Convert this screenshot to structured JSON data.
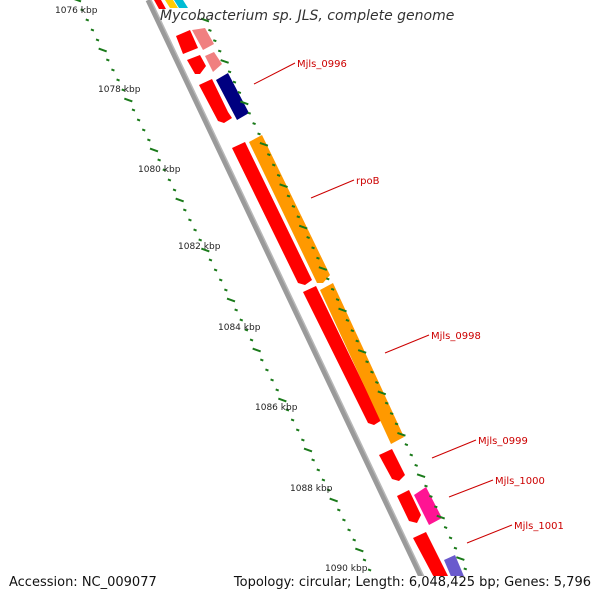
{
  "title": "Mycobacterium sp. JLS, complete genome",
  "footer": {
    "accession": "Accession: NC_009077",
    "summary": "Topology: circular; Length: 6,048,425 bp; Genes: 5,796"
  },
  "ruler": {
    "unit": "kbp",
    "labels": [
      "1076 kbp",
      "1078 kbp",
      "1080 kbp",
      "1082 kbp",
      "1084 kbp",
      "1086 kbp",
      "1088 kbp",
      "1090 kbp"
    ]
  },
  "genes": [
    {
      "name": "Mjls_0996",
      "strand": "+",
      "color": "#00008b"
    },
    {
      "name": "rpoB",
      "strand": "+",
      "color": "#ff9900"
    },
    {
      "name": "Mjls_0998",
      "strand": "+",
      "color": "#ff9900"
    },
    {
      "name": "Mjls_0999",
      "strand": "-",
      "color": "#ff0000"
    },
    {
      "name": "Mjls_1000",
      "strand": "+",
      "color": "#ff1493"
    },
    {
      "name": "Mjls_1001",
      "strand": "-",
      "color": "#ff0000"
    }
  ],
  "colors": {
    "backbone": "#8c8c8c",
    "label": "#cc0000",
    "tick": "#1a7a1a",
    "cds_minus": "#ff0000",
    "cds_plus": "#ff9900",
    "pseudo": "#f08080"
  }
}
